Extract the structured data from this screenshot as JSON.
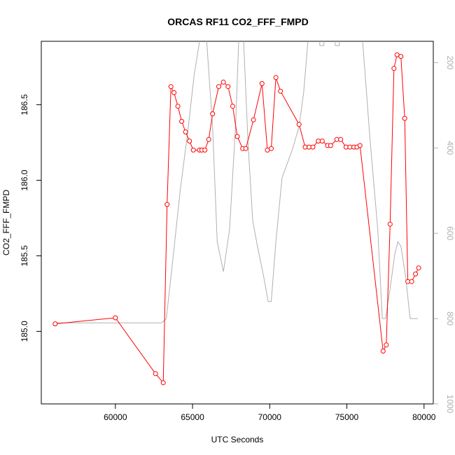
{
  "chart_data": {
    "type": "line",
    "title": "ORCAS RF11 CO2_FFF_FMPD",
    "xlabel": "UTC Seconds",
    "ylabel": "CO2_FFF_FMPD",
    "xlim": [
      55200,
      80600
    ],
    "ylim": [
      184.52,
      186.92
    ],
    "x_ticks": [
      60000,
      65000,
      70000,
      75000,
      80000
    ],
    "y_ticks": [
      185.0,
      185.5,
      186.0,
      186.5
    ],
    "y_tick_labels": [
      "185.0",
      "185.5",
      "186.0",
      "186.5"
    ],
    "right_axis": {
      "lim": [
        1000,
        150
      ],
      "ticks": [
        200,
        400,
        600,
        800,
        1000
      ],
      "color": "#b0b0b0"
    },
    "grid": false,
    "series": [
      {
        "color": "#ff0000",
        "marker": "open-circle",
        "axis": "left",
        "x": [
          56100,
          60000,
          62600,
          63100,
          63350,
          63600,
          63800,
          64050,
          64300,
          64550,
          64800,
          65050,
          65450,
          65600,
          65800,
          66050,
          66300,
          66700,
          67000,
          67300,
          67600,
          67900,
          68250,
          68450,
          68950,
          69500,
          69850,
          70100,
          70400,
          70700,
          71900,
          72300,
          72550,
          72800,
          73150,
          73400,
          73750,
          73950,
          74350,
          74600,
          74950,
          75200,
          75450,
          75650,
          75850,
          77350,
          77550,
          77800,
          78050,
          78250,
          78500,
          78750,
          78950,
          79200,
          79450,
          79650
        ],
        "y": [
          185.05,
          185.09,
          184.72,
          184.66,
          185.84,
          186.62,
          186.58,
          186.49,
          186.39,
          186.32,
          186.26,
          186.2,
          186.2,
          186.2,
          186.2,
          186.27,
          186.44,
          186.62,
          186.65,
          186.62,
          186.49,
          186.29,
          186.21,
          186.21,
          186.4,
          186.64,
          186.2,
          186.21,
          186.68,
          186.59,
          186.37,
          186.22,
          186.22,
          186.22,
          186.26,
          186.26,
          186.23,
          186.23,
          186.27,
          186.27,
          186.22,
          186.22,
          186.22,
          186.22,
          186.23,
          184.87,
          184.91,
          185.71,
          186.74,
          186.83,
          186.82,
          186.41,
          185.33,
          185.33,
          185.38,
          185.42
        ]
      },
      {
        "color": "#b0b0b0",
        "marker": "none",
        "axis": "right",
        "x": [
          56100,
          58000,
          60000,
          62000,
          63000,
          63300,
          63700,
          64200,
          64700,
          65100,
          65500,
          65900,
          66300,
          66600,
          67000,
          67400,
          67800,
          68000,
          68300,
          68600,
          68900,
          69200,
          69600,
          69900,
          70100,
          70400,
          70800,
          71100,
          71500,
          71900,
          72200,
          72500,
          72800,
          73200,
          73250,
          73500,
          73550,
          74200,
          74250,
          74500,
          74550,
          75500,
          76000,
          76500,
          77000,
          77300,
          77500,
          77800,
          78100,
          78300,
          78500,
          78800,
          79100,
          79600
        ],
        "y": [
          810,
          810,
          810,
          810,
          810,
          800,
          670,
          500,
          360,
          230,
          140,
          140,
          350,
          620,
          690,
          590,
          340,
          140,
          140,
          390,
          570,
          630,
          700,
          760,
          760,
          620,
          470,
          440,
          400,
          350,
          270,
          140,
          140,
          140,
          160,
          160,
          140,
          140,
          160,
          160,
          140,
          140,
          140,
          380,
          590,
          800,
          800,
          730,
          650,
          620,
          630,
          700,
          800,
          800
        ]
      }
    ]
  }
}
